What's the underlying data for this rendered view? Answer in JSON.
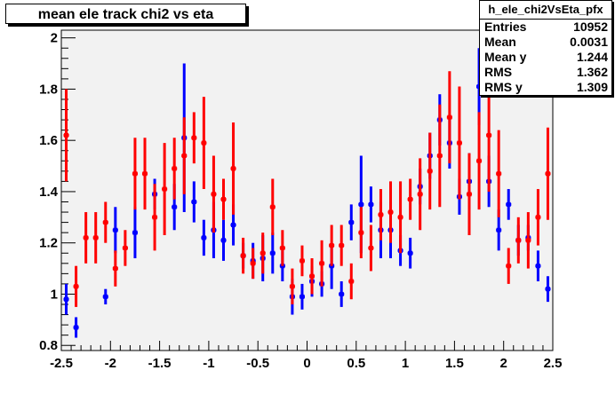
{
  "chart_data": {
    "type": "scatter",
    "title": "mean ele track chi2 vs eta",
    "xlabel": "",
    "ylabel": "",
    "xlim": [
      -2.5,
      2.5
    ],
    "ylim": [
      0.78,
      2.03
    ],
    "x_ticks": [
      "-2.5",
      "-2",
      "-1.5",
      "-1",
      "-0.5",
      "0",
      "0.5",
      "1",
      "1.5",
      "2",
      "2.5"
    ],
    "y_ticks": [
      "0.8",
      "1",
      "1.2",
      "1.4",
      "1.6",
      "1.8",
      "2"
    ],
    "series": [
      {
        "color": "#0000ff",
        "points": [
          {
            "x": -2.45,
            "y": 0.98,
            "err": 0.06
          },
          {
            "x": -2.35,
            "y": 0.87,
            "err": 0.04
          },
          {
            "x": -2.05,
            "y": 0.99,
            "err": 0.03
          },
          {
            "x": -1.95,
            "y": 1.25,
            "err": 0.09
          },
          {
            "x": -1.75,
            "y": 1.24,
            "err": 0.1
          },
          {
            "x": -1.55,
            "y": 1.39,
            "err": 0.06
          },
          {
            "x": -1.35,
            "y": 1.34,
            "err": 0.09
          },
          {
            "x": -1.25,
            "y": 1.61,
            "err": 0.29
          },
          {
            "x": -1.15,
            "y": 1.36,
            "err": 0.08
          },
          {
            "x": -1.05,
            "y": 1.22,
            "err": 0.07
          },
          {
            "x": -0.95,
            "y": 1.25,
            "err": 0.11
          },
          {
            "x": -0.85,
            "y": 1.21,
            "err": 0.08
          },
          {
            "x": -0.75,
            "y": 1.27,
            "err": 0.08
          },
          {
            "x": -0.65,
            "y": 1.15,
            "err": 0.05
          },
          {
            "x": -0.55,
            "y": 1.13,
            "err": 0.07
          },
          {
            "x": -0.45,
            "y": 1.14,
            "err": 0.09
          },
          {
            "x": -0.35,
            "y": 1.16,
            "err": 0.08
          },
          {
            "x": -0.25,
            "y": 1.11,
            "err": 0.06
          },
          {
            "x": -0.15,
            "y": 0.99,
            "err": 0.07
          },
          {
            "x": -0.05,
            "y": 0.99,
            "err": 0.05
          },
          {
            "x": 0.05,
            "y": 1.05,
            "err": 0.06
          },
          {
            "x": 0.15,
            "y": 1.04,
            "err": 0.05
          },
          {
            "x": 0.25,
            "y": 1.11,
            "err": 0.09
          },
          {
            "x": 0.35,
            "y": 1.0,
            "err": 0.05
          },
          {
            "x": 0.45,
            "y": 1.28,
            "err": 0.07
          },
          {
            "x": 0.55,
            "y": 1.35,
            "err": 0.19
          },
          {
            "x": 0.65,
            "y": 1.35,
            "err": 0.07
          },
          {
            "x": 0.75,
            "y": 1.25,
            "err": 0.11
          },
          {
            "x": 0.85,
            "y": 1.25,
            "err": 0.11
          },
          {
            "x": 0.95,
            "y": 1.17,
            "err": 0.06
          },
          {
            "x": 1.05,
            "y": 1.16,
            "err": 0.06
          },
          {
            "x": 1.15,
            "y": 1.42,
            "err": 0.07
          },
          {
            "x": 1.25,
            "y": 1.54,
            "err": 0.09
          },
          {
            "x": 1.35,
            "y": 1.68,
            "err": 0.1
          },
          {
            "x": 1.45,
            "y": 1.59,
            "err": 0.1
          },
          {
            "x": 1.55,
            "y": 1.38,
            "err": 0.07
          },
          {
            "x": 1.65,
            "y": 1.44,
            "err": 0.11
          },
          {
            "x": 1.75,
            "y": 1.81,
            "err": 0.15
          },
          {
            "x": 1.85,
            "y": 1.44,
            "err": 0.1
          },
          {
            "x": 1.95,
            "y": 1.25,
            "err": 0.08
          },
          {
            "x": 2.05,
            "y": 1.35,
            "err": 0.06
          },
          {
            "x": 2.15,
            "y": 1.21,
            "err": 0.06
          },
          {
            "x": 2.25,
            "y": 1.22,
            "err": 0.05
          },
          {
            "x": 2.35,
            "y": 1.11,
            "err": 0.06
          },
          {
            "x": 2.45,
            "y": 1.02,
            "err": 0.05
          }
        ]
      },
      {
        "color": "#ff0000",
        "points": [
          {
            "x": -2.45,
            "y": 1.62,
            "err": 0.18
          },
          {
            "x": -2.35,
            "y": 1.03,
            "err": 0.08
          },
          {
            "x": -2.25,
            "y": 1.22,
            "err": 0.1
          },
          {
            "x": -2.15,
            "y": 1.22,
            "err": 0.1
          },
          {
            "x": -2.05,
            "y": 1.28,
            "err": 0.08
          },
          {
            "x": -1.95,
            "y": 1.1,
            "err": 0.07
          },
          {
            "x": -1.85,
            "y": 1.18,
            "err": 0.07
          },
          {
            "x": -1.75,
            "y": 1.47,
            "err": 0.14
          },
          {
            "x": -1.65,
            "y": 1.47,
            "err": 0.14
          },
          {
            "x": -1.55,
            "y": 1.3,
            "err": 0.13
          },
          {
            "x": -1.45,
            "y": 1.41,
            "err": 0.18
          },
          {
            "x": -1.35,
            "y": 1.49,
            "err": 0.12
          },
          {
            "x": -1.25,
            "y": 1.54,
            "err": 0.15
          },
          {
            "x": -1.15,
            "y": 1.61,
            "err": 0.1
          },
          {
            "x": -1.05,
            "y": 1.59,
            "err": 0.18
          },
          {
            "x": -0.95,
            "y": 1.39,
            "err": 0.15
          },
          {
            "x": -0.85,
            "y": 1.37,
            "err": 0.08
          },
          {
            "x": -0.75,
            "y": 1.49,
            "err": 0.18
          },
          {
            "x": -0.65,
            "y": 1.15,
            "err": 0.07
          },
          {
            "x": -0.55,
            "y": 1.12,
            "err": 0.06
          },
          {
            "x": -0.45,
            "y": 1.16,
            "err": 0.08
          },
          {
            "x": -0.35,
            "y": 1.34,
            "err": 0.11
          },
          {
            "x": -0.25,
            "y": 1.18,
            "err": 0.07
          },
          {
            "x": -0.15,
            "y": 1.03,
            "err": 0.07
          },
          {
            "x": -0.05,
            "y": 1.13,
            "err": 0.06
          },
          {
            "x": 0.05,
            "y": 1.07,
            "err": 0.07
          },
          {
            "x": 0.15,
            "y": 1.12,
            "err": 0.09
          },
          {
            "x": 0.25,
            "y": 1.19,
            "err": 0.08
          },
          {
            "x": 0.35,
            "y": 1.19,
            "err": 0.08
          },
          {
            "x": 0.45,
            "y": 1.05,
            "err": 0.07
          },
          {
            "x": 0.55,
            "y": 1.24,
            "err": 0.1
          },
          {
            "x": 0.65,
            "y": 1.18,
            "err": 0.09
          },
          {
            "x": 0.75,
            "y": 1.31,
            "err": 0.1
          },
          {
            "x": 0.85,
            "y": 1.32,
            "err": 0.12
          },
          {
            "x": 0.95,
            "y": 1.3,
            "err": 0.14
          },
          {
            "x": 1.05,
            "y": 1.37,
            "err": 0.08
          },
          {
            "x": 1.15,
            "y": 1.39,
            "err": 0.14
          },
          {
            "x": 1.25,
            "y": 1.48,
            "err": 0.15
          },
          {
            "x": 1.35,
            "y": 1.54,
            "err": 0.2
          },
          {
            "x": 1.45,
            "y": 1.69,
            "err": 0.18
          },
          {
            "x": 1.55,
            "y": 1.59,
            "err": 0.22
          },
          {
            "x": 1.65,
            "y": 1.39,
            "err": 0.16
          },
          {
            "x": 1.75,
            "y": 1.52,
            "err": 0.19
          },
          {
            "x": 1.85,
            "y": 1.62,
            "err": 0.22
          },
          {
            "x": 1.95,
            "y": 1.47,
            "err": 0.17
          },
          {
            "x": 2.05,
            "y": 1.11,
            "err": 0.07
          },
          {
            "x": 2.15,
            "y": 1.21,
            "err": 0.09
          },
          {
            "x": 2.25,
            "y": 1.21,
            "err": 0.11
          },
          {
            "x": 2.35,
            "y": 1.3,
            "err": 0.11
          },
          {
            "x": 2.45,
            "y": 1.47,
            "err": 0.18
          }
        ]
      }
    ]
  },
  "stats": {
    "name": "h_ele_chi2VsEta_pfx",
    "rows": [
      {
        "label": "Entries",
        "value": "10952"
      },
      {
        "label": "Mean",
        "value": "0.0031"
      },
      {
        "label": "Mean y",
        "value": "1.244"
      },
      {
        "label": "RMS",
        "value": "1.362"
      },
      {
        "label": "RMS y",
        "value": "1.309"
      }
    ]
  }
}
